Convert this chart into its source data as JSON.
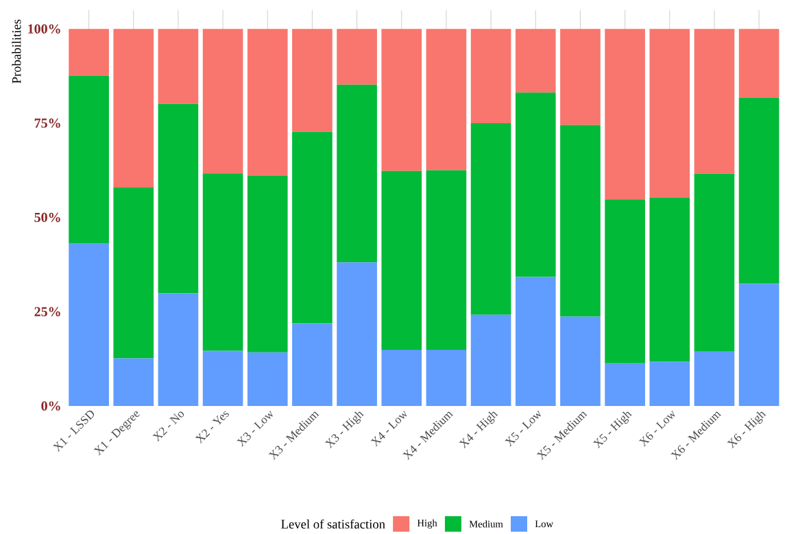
{
  "chart_data": {
    "type": "bar",
    "stacked": true,
    "ylabel": "Probabilities",
    "legend_title": "Level of satisfaction",
    "legend": "bottom",
    "grid": "x",
    "categories": [
      "X1 - LSSD",
      "X1 - Degree",
      "X2 - No",
      "X2 - Yes",
      "X3 - Low",
      "X3 - Medium",
      "X3 - High",
      "X4 - Low",
      "X4 - Medium",
      "X4 - High",
      "X5 - Low",
      "X5 - Medium",
      "X5 - High",
      "X6 - Low",
      "X6 - Medium",
      "X6 - High"
    ],
    "ylim": [
      0,
      105
    ],
    "yticks": [
      {
        "value": 0,
        "label": "0%"
      },
      {
        "value": 25,
        "label": "25%"
      },
      {
        "value": 50,
        "label": "50%"
      },
      {
        "value": 75,
        "label": "75%"
      },
      {
        "value": 100,
        "label": "100%"
      }
    ],
    "series": [
      {
        "name": "Low",
        "color": "#619cff",
        "values": [
          43.2,
          12.6,
          29.9,
          14.6,
          14.2,
          21.9,
          38.1,
          14.9,
          14.9,
          24.2,
          34.2,
          23.7,
          11.3,
          11.7,
          14.4,
          32.4
        ]
      },
      {
        "name": "Medium",
        "color": "#00ba38",
        "values": [
          44.4,
          45.3,
          50.2,
          47.1,
          46.8,
          50.8,
          47.1,
          47.4,
          47.6,
          50.8,
          48.9,
          50.8,
          43.5,
          43.5,
          47.2,
          49.4
        ]
      },
      {
        "name": "High",
        "color": "#f8766d",
        "values": [
          12.4,
          42.1,
          19.9,
          38.3,
          39.0,
          27.3,
          14.8,
          37.7,
          37.5,
          25.0,
          16.9,
          25.5,
          45.2,
          44.8,
          38.4,
          18.2
        ]
      }
    ]
  }
}
